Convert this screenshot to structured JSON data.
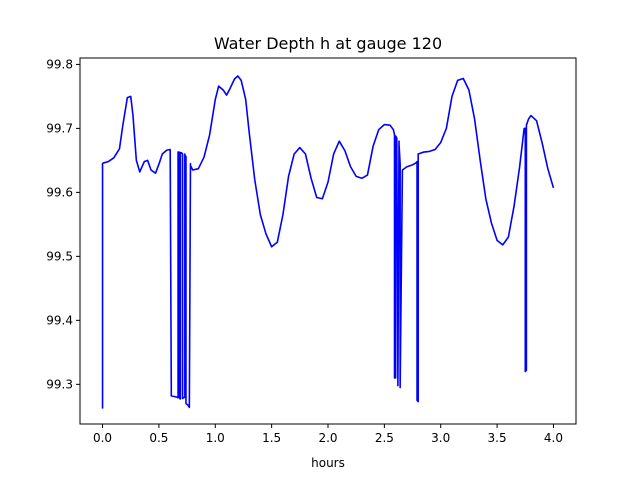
{
  "chart_data": {
    "type": "line",
    "title": "Water Depth h at gauge 120",
    "xlabel": "hours",
    "ylabel": "",
    "xlim": [
      -0.2,
      4.2
    ],
    "ylim": [
      99.238,
      99.81
    ],
    "xticks": [
      {
        "value": 0.0,
        "label": "0.0"
      },
      {
        "value": 0.5,
        "label": "0.5"
      },
      {
        "value": 1.0,
        "label": "1.0"
      },
      {
        "value": 1.5,
        "label": "1.5"
      },
      {
        "value": 2.0,
        "label": "2.0"
      },
      {
        "value": 2.5,
        "label": "2.5"
      },
      {
        "value": 3.0,
        "label": "3.0"
      },
      {
        "value": 3.5,
        "label": "3.5"
      },
      {
        "value": 4.0,
        "label": "4.0"
      }
    ],
    "yticks": [
      {
        "value": 99.3,
        "label": "99.3"
      },
      {
        "value": 99.4,
        "label": "99.4"
      },
      {
        "value": 99.5,
        "label": "99.5"
      },
      {
        "value": 99.6,
        "label": "99.6"
      },
      {
        "value": 99.7,
        "label": "99.7"
      },
      {
        "value": 99.8,
        "label": "99.8"
      }
    ],
    "grid": false,
    "legend": "none",
    "series": [
      {
        "color": "#0000ff",
        "x": [
          0.0,
          0.0,
          0.01,
          0.05,
          0.1,
          0.15,
          0.18,
          0.22,
          0.25,
          0.27,
          0.3,
          0.33,
          0.37,
          0.4,
          0.43,
          0.47,
          0.5,
          0.53,
          0.57,
          0.6,
          0.61,
          0.61,
          0.66,
          0.67,
          0.67,
          0.68,
          0.68,
          0.69,
          0.69,
          0.7,
          0.71,
          0.71,
          0.73,
          0.73,
          0.73,
          0.74,
          0.74,
          0.76,
          0.77,
          0.78,
          0.78,
          0.8,
          0.85,
          0.9,
          0.95,
          1.0,
          1.03,
          1.07,
          1.1,
          1.13,
          1.17,
          1.2,
          1.23,
          1.27,
          1.3,
          1.35,
          1.4,
          1.45,
          1.5,
          1.55,
          1.6,
          1.65,
          1.7,
          1.75,
          1.8,
          1.85,
          1.9,
          1.95,
          2.0,
          2.05,
          2.1,
          2.15,
          2.2,
          2.25,
          2.3,
          2.35,
          2.4,
          2.45,
          2.5,
          2.55,
          2.58,
          2.59,
          2.59,
          2.6,
          2.6,
          2.61,
          2.62,
          2.62,
          2.63,
          2.63,
          2.64,
          2.64,
          2.66,
          2.7,
          2.75,
          2.78,
          2.79,
          2.79,
          2.8,
          2.8,
          2.85,
          2.9,
          2.95,
          3.0,
          3.05,
          3.1,
          3.15,
          3.2,
          3.25,
          3.3,
          3.35,
          3.4,
          3.45,
          3.5,
          3.55,
          3.6,
          3.65,
          3.7,
          3.74,
          3.75,
          3.75,
          3.76,
          3.76,
          3.78,
          3.8,
          3.85,
          3.9,
          3.95,
          4.0
        ],
        "y": [
          99.262,
          99.645,
          99.646,
          99.648,
          99.654,
          99.668,
          99.705,
          99.748,
          99.75,
          99.72,
          99.65,
          99.632,
          99.648,
          99.65,
          99.635,
          99.63,
          99.644,
          99.66,
          99.666,
          99.667,
          99.282,
          99.282,
          99.28,
          99.279,
          99.663,
          99.663,
          99.28,
          99.277,
          99.662,
          99.662,
          99.66,
          99.278,
          99.28,
          99.66,
          99.658,
          99.656,
          99.27,
          99.267,
          99.264,
          99.645,
          99.642,
          99.635,
          99.637,
          99.655,
          99.69,
          99.745,
          99.766,
          99.76,
          99.752,
          99.762,
          99.777,
          99.782,
          99.775,
          99.745,
          99.695,
          99.62,
          99.565,
          99.535,
          99.515,
          99.522,
          99.565,
          99.625,
          99.66,
          99.67,
          99.66,
          99.622,
          99.592,
          99.59,
          99.616,
          99.66,
          99.68,
          99.665,
          99.64,
          99.625,
          99.622,
          99.627,
          99.672,
          99.698,
          99.706,
          99.705,
          99.698,
          99.69,
          99.31,
          99.31,
          99.688,
          99.685,
          99.305,
          99.298,
          99.68,
          99.675,
          99.645,
          99.295,
          99.635,
          99.64,
          99.643,
          99.646,
          99.648,
          99.275,
          99.273,
          99.66,
          99.663,
          99.664,
          99.667,
          99.678,
          99.7,
          99.75,
          99.775,
          99.778,
          99.76,
          99.715,
          99.65,
          99.59,
          99.552,
          99.525,
          99.518,
          99.53,
          99.578,
          99.64,
          99.7,
          99.7,
          99.32,
          99.322,
          99.705,
          99.715,
          99.72,
          99.712,
          99.677,
          99.637,
          99.607
        ]
      }
    ]
  }
}
